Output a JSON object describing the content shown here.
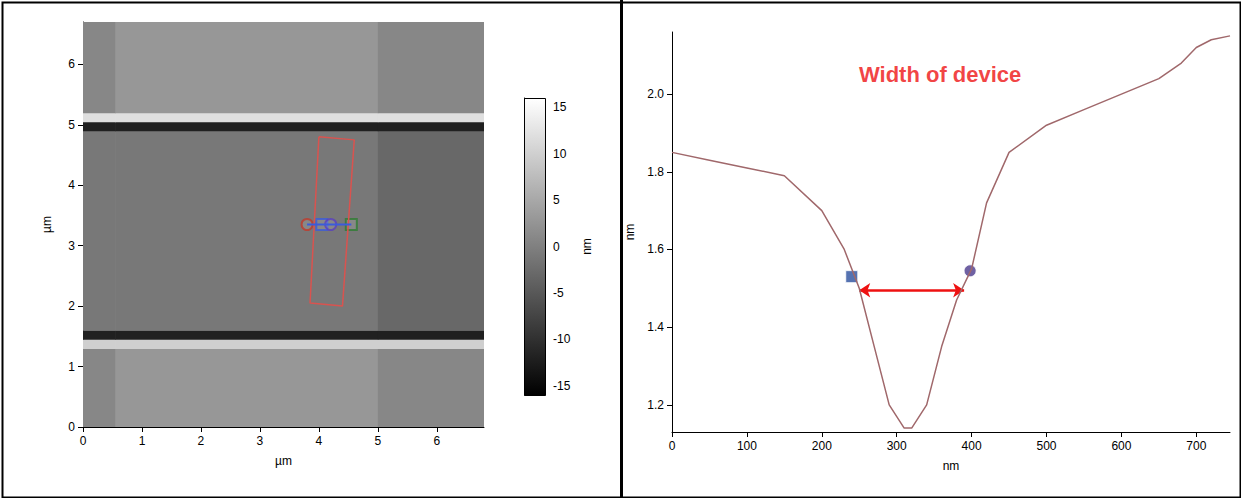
{
  "chart_data": [
    {
      "type": "heatmap",
      "xlabel": "µm",
      "ylabel": "µm",
      "xlim": [
        0,
        6.8
      ],
      "ylim": [
        0,
        6.7
      ],
      "xticks": [
        0,
        1,
        2,
        3,
        4,
        5,
        6
      ],
      "yticks": [
        0,
        1,
        2,
        3,
        4,
        5,
        6
      ],
      "grid": false,
      "x_edges": [
        0,
        0.55,
        5.0,
        6.8
      ],
      "y_edges": [
        0,
        1.3,
        1.45,
        1.6,
        4.9,
        5.05,
        5.2,
        6.7
      ],
      "z": [
        [
          1,
          3,
          1
        ],
        [
          10,
          10,
          10
        ],
        [
          -12,
          -12,
          -12
        ],
        [
          -1,
          -1,
          -3
        ],
        [
          -12,
          -12,
          -12
        ],
        [
          12,
          12,
          12
        ],
        [
          1,
          3,
          1
        ]
      ],
      "colorbar": {
        "range": [
          -16,
          16
        ],
        "ticks": [
          -15,
          -10,
          -5,
          0,
          5,
          10,
          15
        ],
        "label": "nm"
      },
      "selection_box": {
        "color": "#d9534f",
        "line_style": "solid",
        "points": [
          [
            4.0,
            4.8
          ],
          [
            4.6,
            4.75
          ],
          [
            4.4,
            2.0
          ],
          [
            3.85,
            2.05
          ],
          [
            4.0,
            4.8
          ]
        ]
      },
      "profile_line": {
        "color": "#3b5bdb",
        "line_style": "solid",
        "points": [
          [
            3.8,
            3.35
          ],
          [
            4.55,
            3.35
          ]
        ]
      },
      "cursors": [
        {
          "x": 3.8,
          "y": 3.35,
          "marker": "circle",
          "color": "#c0392b"
        },
        {
          "x": 4.05,
          "y": 3.35,
          "marker": "square",
          "color": "#3b5bdb"
        },
        {
          "x": 4.2,
          "y": 3.35,
          "marker": "circle",
          "color": "#5a3fc0"
        },
        {
          "x": 4.55,
          "y": 3.35,
          "marker": "square",
          "color": "#2e7d32"
        }
      ]
    },
    {
      "type": "line",
      "xlabel": "nm",
      "ylabel": "nm",
      "x": [
        0,
        50,
        100,
        150,
        200,
        230,
        250,
        270,
        290,
        310,
        320,
        340,
        360,
        380,
        400,
        420,
        450,
        500,
        550,
        600,
        650,
        680,
        700,
        720,
        745
      ],
      "values": [
        1.85,
        1.83,
        1.81,
        1.79,
        1.7,
        1.6,
        1.5,
        1.35,
        1.2,
        1.14,
        1.14,
        1.2,
        1.35,
        1.47,
        1.55,
        1.72,
        1.85,
        1.92,
        1.96,
        2.0,
        2.04,
        2.08,
        2.12,
        2.14,
        2.15
      ],
      "color": "#a0686b",
      "xlim": [
        0,
        745
      ],
      "ylim": [
        1.13,
        2.16
      ],
      "xticks": [
        0,
        100,
        200,
        300,
        400,
        500,
        600,
        700
      ],
      "yticks": [
        1.2,
        1.4,
        1.6,
        1.8,
        {
          "value": 2,
          "label": "2.0"
        }
      ],
      "grid": false,
      "cursors": [
        {
          "x": 240,
          "y": 1.53,
          "marker": "square",
          "color": "#2b4f9e"
        },
        {
          "x": 398,
          "y": 1.545,
          "marker": "circle",
          "color": "#4b3a8c"
        }
      ],
      "annotation": {
        "text": "Width of device",
        "color": "#ee1111",
        "x": 358,
        "y": 2.05
      },
      "arrow": {
        "color": "#ee1111",
        "from": [
          250,
          1.495
        ],
        "to": [
          390,
          1.495
        ]
      }
    }
  ]
}
